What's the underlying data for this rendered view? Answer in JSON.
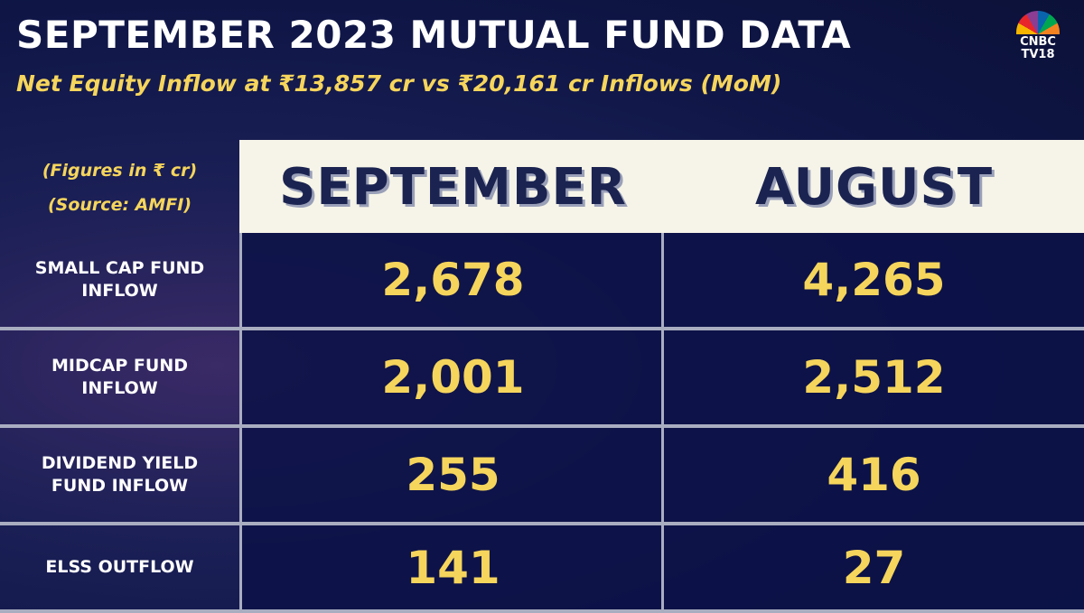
{
  "header": {
    "title": "SEPTEMBER 2023 MUTUAL FUND DATA",
    "subtitle": "Net Equity Inflow at ₹13,857 cr vs ₹20,161 cr Inflows (MoM)"
  },
  "logo": {
    "lines": [
      "CNBC",
      "TV18"
    ]
  },
  "table": {
    "notes": [
      "(Figures in ₹ cr)",
      "(Source: AMFI)"
    ],
    "columns": [
      "SEPTEMBER",
      "AUGUST"
    ],
    "rows": [
      {
        "label": [
          "SMALL CAP FUND",
          "INFLOW"
        ],
        "values": [
          "2,678",
          "4,265"
        ]
      },
      {
        "label": [
          "MIDCAP FUND",
          "INFLOW"
        ],
        "values": [
          "2,001",
          "2,512"
        ]
      },
      {
        "label": [
          "DIVIDEND YIELD",
          "FUND INFLOW"
        ],
        "values": [
          "255",
          "416"
        ]
      },
      {
        "label": [
          "ELSS OUTFLOW"
        ],
        "values": [
          "141",
          "27"
        ]
      }
    ]
  }
}
